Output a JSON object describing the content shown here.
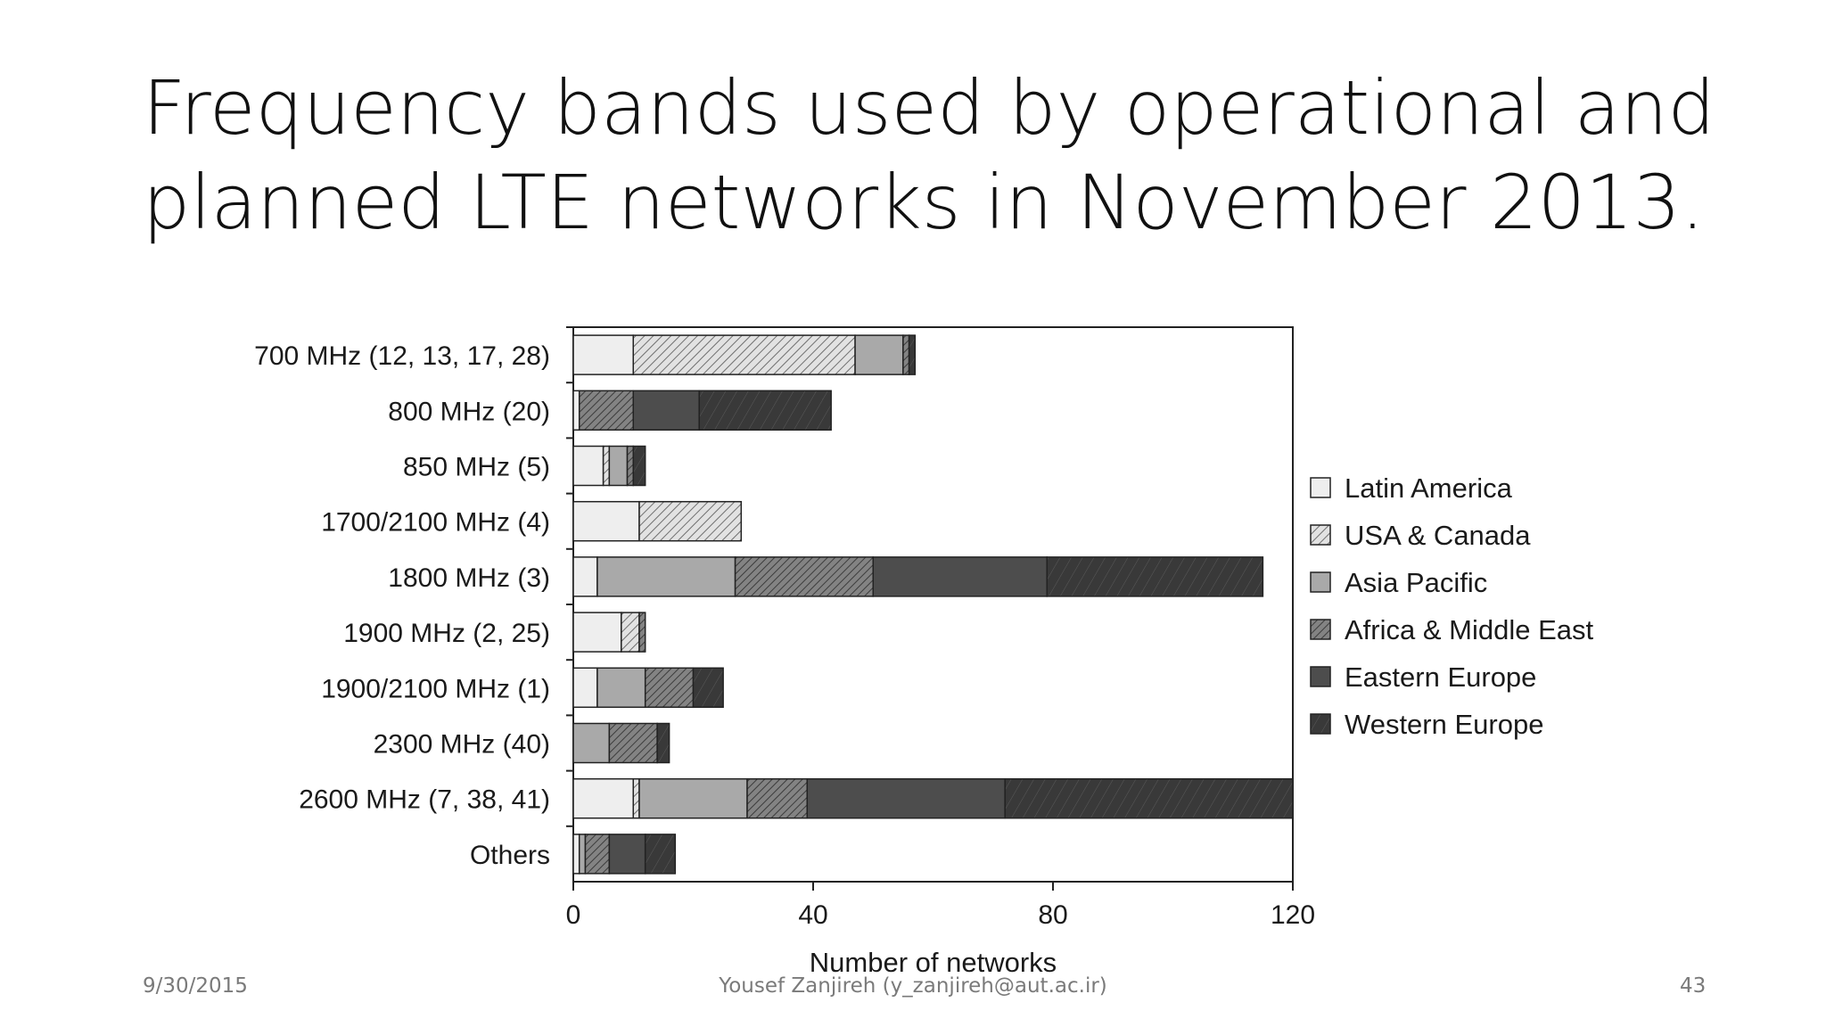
{
  "slide": {
    "title_line1": "Frequency bands used by operational and",
    "title_line2": "planned LTE networks in November 2013."
  },
  "footer": {
    "date": "9/30/2015",
    "author": "Yousef Zanjireh (y_zanjireh@aut.ac.ir)",
    "page": "43"
  },
  "chart_data": {
    "type": "bar",
    "orientation": "horizontal",
    "stacked": true,
    "title": "",
    "xlabel": "Number of networks",
    "ylabel": "",
    "xlim": [
      0,
      120
    ],
    "xticks": [
      0,
      40,
      80,
      120
    ],
    "legend_position": "right",
    "categories": [
      "700 MHz (12, 13, 17, 28)",
      "800 MHz (20)",
      "850 MHz (5)",
      "1700/2100 MHz (4)",
      "1800 MHz (3)",
      "1900 MHz (2, 25)",
      "1900/2100 MHz (1)",
      "2300 MHz (40)",
      "2600 MHz (7, 38, 41)",
      "Others"
    ],
    "series": [
      {
        "name": "Latin America",
        "style": "latin",
        "values": [
          10,
          1,
          5,
          11,
          4,
          8,
          4,
          0,
          10,
          1
        ]
      },
      {
        "name": "USA & Canada",
        "style": "usa",
        "values": [
          37,
          0,
          1,
          17,
          0,
          3,
          0,
          0,
          1,
          0
        ]
      },
      {
        "name": "Asia Pacific",
        "style": "asia",
        "values": [
          8,
          0,
          3,
          0,
          23,
          0,
          8,
          6,
          18,
          1
        ]
      },
      {
        "name": "Africa & Middle East",
        "style": "africa",
        "values": [
          1,
          9,
          1,
          0,
          23,
          1,
          8,
          8,
          10,
          4
        ]
      },
      {
        "name": "Eastern Europe",
        "style": "eastern",
        "values": [
          0,
          11,
          0,
          0,
          29,
          0,
          0,
          0,
          33,
          6
        ]
      },
      {
        "name": "Western Europe",
        "style": "western",
        "values": [
          1,
          22,
          2,
          0,
          36,
          0,
          5,
          2,
          48,
          5
        ]
      }
    ]
  },
  "colors": {
    "latin": "#eeeeee",
    "usa_bg": "#e2e2e2",
    "usa_line": "#6f6f6f",
    "asia": "#a9a9a9",
    "africa_bg": "#838383",
    "africa_line": "#3c3c3c",
    "eastern": "#4d4d4d",
    "western": "#393939",
    "western_line": "#5a5a5a",
    "outline": "#222222",
    "axis": "#222222",
    "text": "#1a1a1a"
  }
}
